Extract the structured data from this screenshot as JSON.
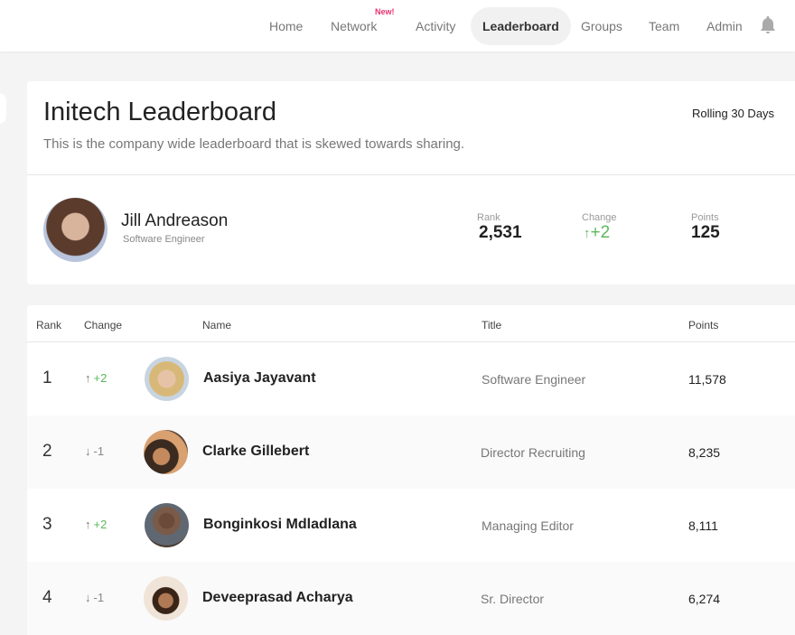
{
  "nav": {
    "items": [
      {
        "label": "Home"
      },
      {
        "label": "Network",
        "badge": "New!"
      },
      {
        "label": "Activity"
      },
      {
        "label": "Leaderboard",
        "active": true
      },
      {
        "label": "Groups"
      },
      {
        "label": "Team"
      },
      {
        "label": "Admin"
      }
    ],
    "bell_icon": "bell-icon"
  },
  "header": {
    "title": "Initech Leaderboard",
    "subtitle": "This is the company wide leaderboard that is skewed towards sharing.",
    "period": "Rolling 30 Days"
  },
  "profile": {
    "name": "Jill Andreason",
    "role": "Software Engineer",
    "rank_label": "Rank",
    "rank": "2,531",
    "change_label": "Change",
    "change": "+2",
    "change_dir": "up",
    "points_label": "Points",
    "points": "125"
  },
  "table": {
    "headers": {
      "rank": "Rank",
      "change": "Change",
      "name": "Name",
      "title": "Title",
      "points": "Points"
    },
    "rows": [
      {
        "rank": "1",
        "change": "+2",
        "dir": "up",
        "name": "Aasiya Jayavant",
        "title": "Software Engineer",
        "points": "11,578"
      },
      {
        "rank": "2",
        "change": "-1",
        "dir": "down",
        "name": "Clarke Gillebert",
        "title": "Director Recruiting",
        "points": "8,235"
      },
      {
        "rank": "3",
        "change": "+2",
        "dir": "up",
        "name": "Bonginkosi Mdladlana",
        "title": "Managing Editor",
        "points": "8,111"
      },
      {
        "rank": "4",
        "change": "-1",
        "dir": "down",
        "name": "Deveeprasad Acharya",
        "title": "Sr. Director",
        "points": "6,274"
      }
    ]
  },
  "colors": {
    "up": "#5cb85c",
    "badge": "#e8336d",
    "active_nav_bg": "#f1f1f1"
  }
}
